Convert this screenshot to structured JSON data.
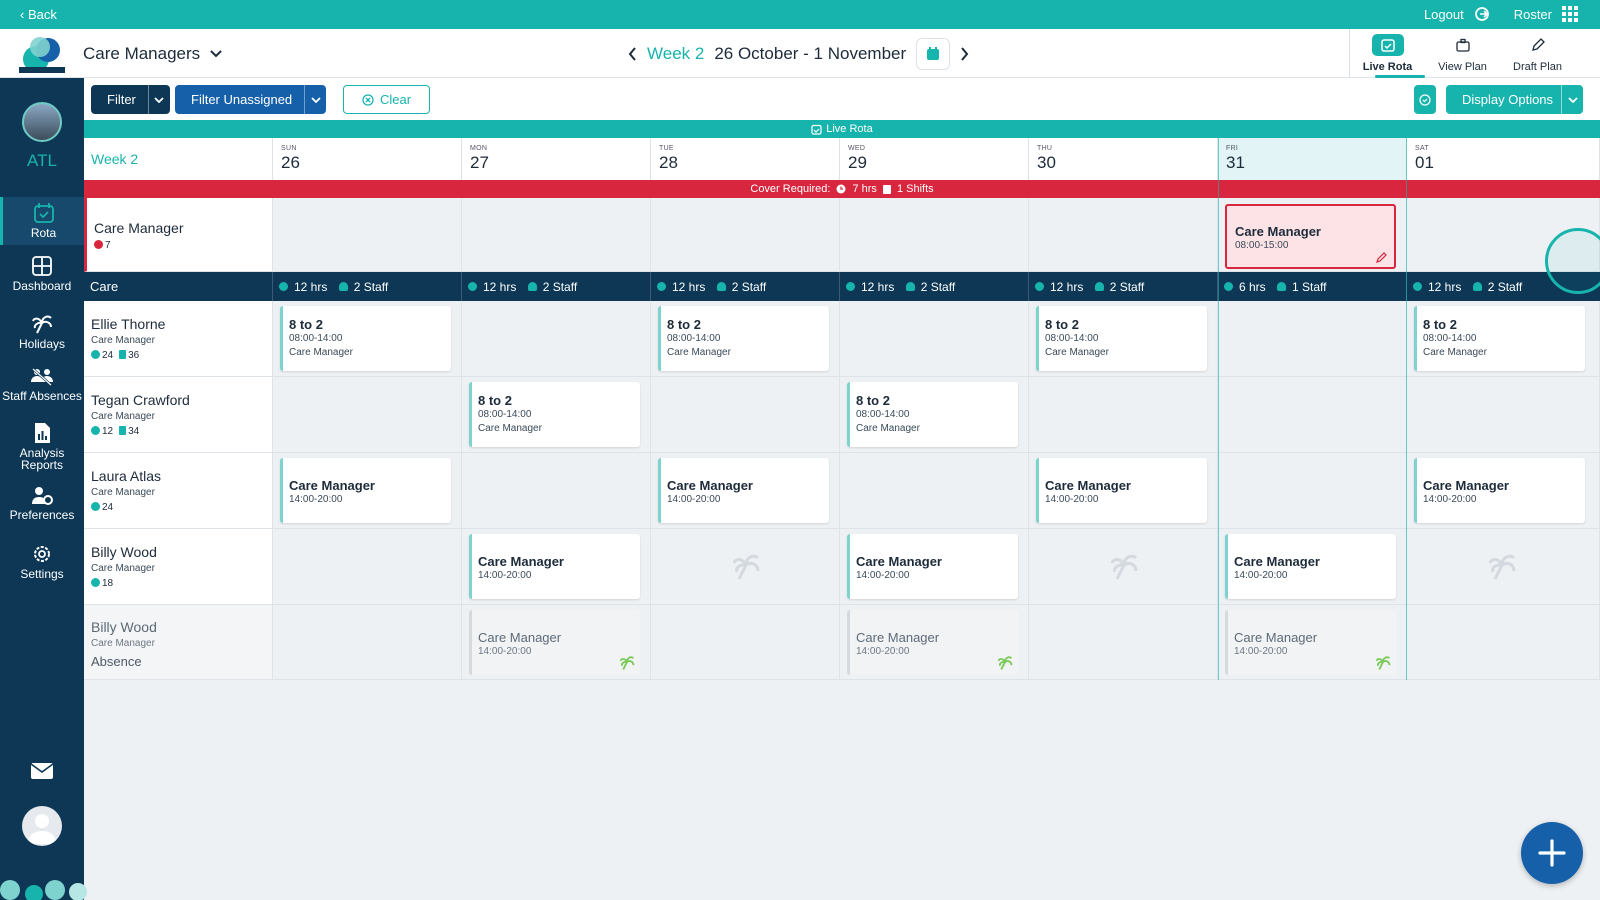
{
  "topbar": {
    "back": "‹ Back",
    "logout": "Logout",
    "roster": "Roster"
  },
  "header": {
    "team": "Care Managers",
    "week": "Week 2",
    "range": "26 October - 1 November",
    "tabs": [
      {
        "label": "Live Rota",
        "icon": "calendar-check-icon",
        "active": true
      },
      {
        "label": "View Plan",
        "icon": "briefcase-icon",
        "active": false
      },
      {
        "label": "Draft Plan",
        "icon": "pencil-icon",
        "active": false
      }
    ]
  },
  "sidebar": {
    "org": "ATL",
    "items": [
      {
        "label": "Rota",
        "icon": "calendar-check-icon",
        "active": true
      },
      {
        "label": "Dashboard",
        "icon": "dashboard-icon"
      },
      {
        "label": "Holidays",
        "icon": "palm-tree-icon"
      },
      {
        "label": "Staff Absences",
        "icon": "staff-absences-icon"
      },
      {
        "label": "Analysis Reports",
        "icon": "report-icon"
      },
      {
        "label": "Preferences",
        "icon": "preferences-icon"
      },
      {
        "label": "Settings",
        "icon": "gear-icon"
      }
    ]
  },
  "filters": {
    "filter": "Filter",
    "filter_unassigned": "Filter Unassigned",
    "clear": "Clear",
    "display_options": "Display Options"
  },
  "rota": {
    "live_strip": "Live Rota",
    "week_label": "Week 2",
    "days": [
      {
        "name": "SUN",
        "num": "26"
      },
      {
        "name": "MON",
        "num": "27"
      },
      {
        "name": "TUE",
        "num": "28"
      },
      {
        "name": "WED",
        "num": "29"
      },
      {
        "name": "THU",
        "num": "30"
      },
      {
        "name": "FRI",
        "num": "31"
      },
      {
        "name": "SAT",
        "num": "01"
      }
    ],
    "cover": {
      "label": "Cover Required:",
      "hrs": "7 hrs",
      "shifts": "1 Shifts"
    },
    "cover_row": {
      "name": "Care Manager",
      "count": "7",
      "shift": {
        "title": "Care Manager",
        "time": "08:00-15:00"
      }
    },
    "group": {
      "name": "Care",
      "summaries": [
        {
          "hrs": "12 hrs",
          "staff": "2 Staff"
        },
        {
          "hrs": "12 hrs",
          "staff": "2 Staff"
        },
        {
          "hrs": "12 hrs",
          "staff": "2 Staff"
        },
        {
          "hrs": "12 hrs",
          "staff": "2 Staff"
        },
        {
          "hrs": "12 hrs",
          "staff": "2 Staff"
        },
        {
          "hrs": "6 hrs",
          "staff": "1 Staff"
        },
        {
          "hrs": "12 hrs",
          "staff": "2 Staff"
        }
      ]
    },
    "staff": [
      {
        "name": "Ellie Thorne",
        "role": "Care Manager",
        "stat1": "24",
        "stat2": "36"
      },
      {
        "name": "Tegan Crawford",
        "role": "Care Manager",
        "stat1": "12",
        "stat2": "34"
      },
      {
        "name": "Laura Atlas",
        "role": "Care Manager",
        "stat1": "24"
      },
      {
        "name": "Billy Wood",
        "role": "Care Manager",
        "stat1": "18"
      },
      {
        "name": "Billy Wood",
        "role": "Care Manager",
        "absence": "Absence"
      }
    ],
    "shift_8to2": {
      "title": "8 to 2",
      "time": "08:00-14:00",
      "role": "Care Manager"
    },
    "shift_cm": {
      "title": "Care Manager",
      "time": "14:00-20:00"
    }
  },
  "colors": {
    "teal": "#17b4ad",
    "navy": "#0d3755",
    "blue": "#1560a8",
    "red": "#d7263d"
  }
}
